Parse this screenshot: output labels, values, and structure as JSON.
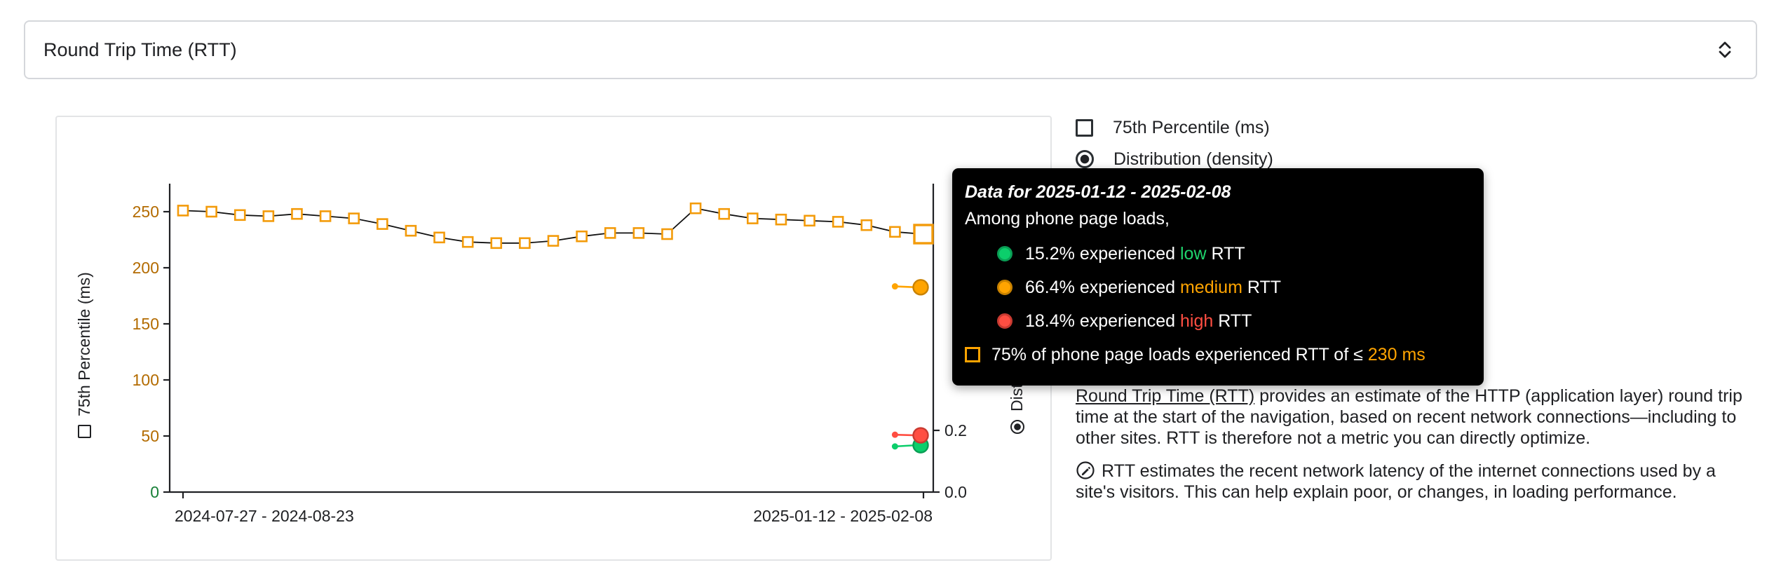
{
  "metric_select": {
    "value": "Round Trip Time (RTT)",
    "icon": "unfold-more"
  },
  "legend": {
    "items": [
      {
        "type": "checkbox",
        "checked": false,
        "label": "75th Percentile (ms)"
      },
      {
        "type": "radio",
        "checked": true,
        "label": "Distribution (density)"
      }
    ]
  },
  "chart_data": {
    "type": "line",
    "title": "",
    "ylabel": "75th Percentile (ms)",
    "y2label": "Distribution (density)",
    "yticks": [
      0,
      50,
      100,
      150,
      200,
      250
    ],
    "y2ticks": [
      "0.0",
      "0.2"
    ],
    "ylim": [
      0,
      275
    ],
    "y2lim": [
      0,
      0.8
    ],
    "grid": false,
    "x_tick_labels": [
      "2024-07-27 - 2024-08-23",
      "2025-01-12 - 2025-02-08"
    ],
    "series": [
      {
        "name": "75th Percentile (ms)",
        "marker": "square-outline",
        "color": "#f39b0a",
        "line_color": "#111111",
        "values": [
          251,
          250,
          247,
          246,
          248,
          246,
          244,
          239,
          233,
          227,
          223,
          222,
          222,
          224,
          228,
          231,
          231,
          230,
          253,
          248,
          244,
          243,
          242,
          241,
          238,
          232,
          230
        ]
      }
    ],
    "density_series": [
      {
        "name": "low",
        "color": "#0cce6b",
        "ring": "#0a9e55",
        "last_two": [
          0.148,
          0.152
        ]
      },
      {
        "name": "medium",
        "color": "#ffa400",
        "ring": "#c98200",
        "last_two": [
          0.667,
          0.664
        ]
      },
      {
        "name": "high",
        "color": "#ff4e42",
        "ring": "#c83a31",
        "last_two": [
          0.186,
          0.184
        ]
      }
    ],
    "axis_colors": {
      "axis": "#202124",
      "medium_ticks": "#b36b00",
      "zero_tick": "#188038",
      "x_labels": "#202124"
    }
  },
  "tooltip": {
    "title": "Data for 2025-01-12 - 2025-02-08",
    "subtitle": "Among phone page loads,",
    "rows": [
      {
        "marker": "circle",
        "color": "#0cce6b",
        "ring": "#0a9e55",
        "prefix": "15.2% experienced ",
        "keyword": "low",
        "suffix": " RTT",
        "keyword_color": "#1fd36c"
      },
      {
        "marker": "circle",
        "color": "#ffa400",
        "ring": "#c98200",
        "prefix": "66.4% experienced ",
        "keyword": "medium",
        "suffix": " RTT",
        "keyword_color": "#ffa400"
      },
      {
        "marker": "circle",
        "color": "#ff4e42",
        "ring": "#c83a31",
        "prefix": "18.4% experienced ",
        "keyword": "high",
        "suffix": " RTT",
        "keyword_color": "#ff4e42"
      }
    ],
    "percentile_row": {
      "marker": "square-outline",
      "color": "#ffa400",
      "prefix": "75% of phone page loads experienced RTT of ≤ ",
      "keyword": "230 ms",
      "keyword_color": "#ffa400"
    }
  },
  "description": {
    "p1_link": "Round Trip Time (RTT)",
    "p1_rest": " provides an estimate of the HTTP (application layer) round trip time at the start of the navigation, based on recent network connections—including to other sites. RTT is therefore not a metric you can directly optimize.",
    "p2_icon": "pencil-circle",
    "p2": "RTT estimates the recent network latency of the internet connections used by a site's visitors. This can help explain poor, or changes, in loading performance."
  }
}
